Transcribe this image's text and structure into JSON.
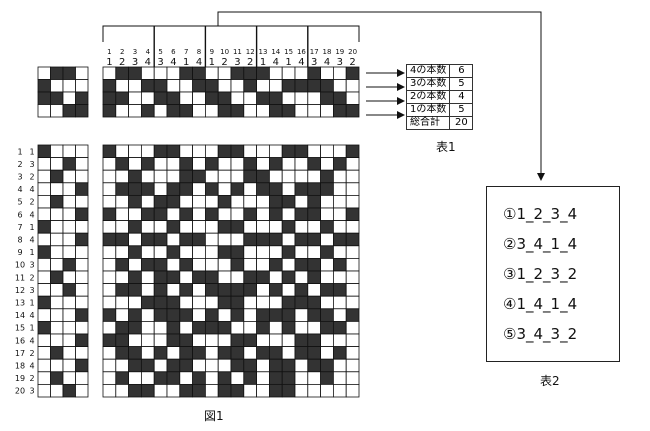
{
  "tieup_top_numbers": [
    "1",
    "2",
    "3",
    "4",
    "5",
    "6",
    "7",
    "8",
    "9",
    "10",
    "11",
    "12",
    "13",
    "14",
    "15",
    "16",
    "17",
    "18",
    "19",
    "20"
  ],
  "tieup_top_shafts": [
    "1",
    "2",
    "3",
    "4",
    "3",
    "4",
    "1",
    "4",
    "1",
    "2",
    "3",
    "2",
    "1",
    "4",
    "1",
    "4",
    "3",
    "4",
    "3",
    "2"
  ],
  "tieup_top_pattern": [
    "01100011001110001001",
    "10011001100100111100",
    "11001100110011000110",
    "10010110011001100011"
  ],
  "tieup_box_pattern": [
    "0110",
    "1000",
    "1101",
    "0011"
  ],
  "treadling_rows": [
    {
      "num": "1",
      "shaft": "1"
    },
    {
      "num": "2",
      "shaft": "3"
    },
    {
      "num": "3",
      "shaft": "2"
    },
    {
      "num": "4",
      "shaft": "4"
    },
    {
      "num": "5",
      "shaft": "2"
    },
    {
      "num": "6",
      "shaft": "4"
    },
    {
      "num": "7",
      "shaft": "1"
    },
    {
      "num": "8",
      "shaft": "4"
    },
    {
      "num": "9",
      "shaft": "1"
    },
    {
      "num": "10",
      "shaft": "3"
    },
    {
      "num": "11",
      "shaft": "2"
    },
    {
      "num": "12",
      "shaft": "3"
    },
    {
      "num": "13",
      "shaft": "1"
    },
    {
      "num": "14",
      "shaft": "4"
    },
    {
      "num": "15",
      "shaft": "1"
    },
    {
      "num": "16",
      "shaft": "4"
    },
    {
      "num": "17",
      "shaft": "2"
    },
    {
      "num": "18",
      "shaft": "4"
    },
    {
      "num": "19",
      "shaft": "2"
    },
    {
      "num": "20",
      "shaft": "3"
    }
  ],
  "treadling_pattern": [
    "1000",
    "0010",
    "0100",
    "0001",
    "0100",
    "0001",
    "1000",
    "0001",
    "1000",
    "0010",
    "0100",
    "0010",
    "1000",
    "0001",
    "1000",
    "0001",
    "0100",
    "0001",
    "0100",
    "0010"
  ],
  "weave_pattern": [
    "10001100011000110001",
    "01010010100101001010",
    "00100011000110000100",
    "01110110101011011100",
    "00101100010001101000",
    "10011010100101011001",
    "00100100011000100100",
    "11011011000111011011",
    "00100100011000100100",
    "01011010001001011010",
    "00101101100110101000",
    "01101010111101010110",
    "00011100011000111000",
    "10101110101011101101",
    "01100101110010100110",
    "11000110001100011000",
    "01101011011011011010",
    "00110110001101101100",
    "01001101010101100100",
    "00110011011001100000"
  ],
  "table1": {
    "rows": [
      {
        "label": "4の本数",
        "value": "6"
      },
      {
        "label": "3の本数",
        "value": "5"
      },
      {
        "label": "2の本数",
        "value": "4"
      },
      {
        "label": "1の本数",
        "value": "5"
      },
      {
        "label": "総合計",
        "value": "20"
      }
    ],
    "caption": "表1"
  },
  "table2": {
    "items": [
      "①1_2_3_4",
      "②3_4_1_4",
      "③1_2_3_2",
      "④1_4_1_4",
      "⑤3_4_3_2"
    ],
    "caption": "表2"
  },
  "figure_caption": "図1",
  "colors": {
    "ink": "#333333",
    "line": "#111111",
    "background": "#ffffff"
  }
}
